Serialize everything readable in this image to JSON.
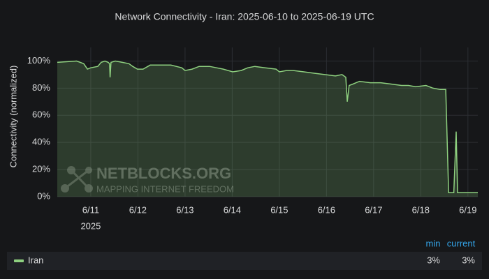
{
  "chart_data": {
    "type": "line",
    "title": "Network Connectivity - Iran: 2025-06-10 to 2025-06-19 UTC",
    "y_label": "Connectivity (normalized)",
    "x_year_label": "2025",
    "watermark": {
      "title": "NETBLOCKS.ORG",
      "subtitle": "MAPPING INTERNET FREEDOM"
    },
    "xlim": [
      10.29,
      19.21
    ],
    "xticks": [
      {
        "value": 11,
        "label": "6/11"
      },
      {
        "value": 12,
        "label": "6/12"
      },
      {
        "value": 13,
        "label": "6/13"
      },
      {
        "value": 14,
        "label": "6/14"
      },
      {
        "value": 15,
        "label": "6/15"
      },
      {
        "value": 16,
        "label": "6/16"
      },
      {
        "value": 17,
        "label": "6/17"
      },
      {
        "value": 18,
        "label": "6/18"
      },
      {
        "value": 19,
        "label": "6/19"
      }
    ],
    "ylim": [
      0,
      110
    ],
    "yticks": [
      {
        "value": 0,
        "label": "0%"
      },
      {
        "value": 20,
        "label": "20%"
      },
      {
        "value": 40,
        "label": "40%"
      },
      {
        "value": 60,
        "label": "60%"
      },
      {
        "value": 80,
        "label": "80%"
      },
      {
        "value": 100,
        "label": "100%"
      }
    ],
    "grid": true,
    "fill_area": true,
    "x": [
      10.29,
      10.7,
      10.85,
      10.93,
      11.0,
      11.15,
      11.22,
      11.3,
      11.37,
      11.4,
      11.41,
      11.43,
      11.52,
      11.67,
      11.81,
      11.89,
      11.99,
      12.11,
      12.26,
      12.48,
      12.7,
      12.93,
      13.0,
      13.15,
      13.3,
      13.52,
      13.67,
      13.81,
      14.01,
      14.19,
      14.33,
      14.48,
      14.7,
      14.93,
      15.0,
      15.15,
      15.3,
      15.52,
      15.74,
      15.96,
      16.19,
      16.33,
      16.41,
      16.44,
      16.48,
      16.56,
      16.7,
      16.93,
      17.15,
      17.37,
      17.59,
      17.74,
      17.89,
      18.11,
      18.26,
      18.41,
      18.53,
      18.59,
      18.7,
      18.75,
      18.78,
      18.93,
      19.21
    ],
    "legend_columns": [
      "min",
      "current"
    ],
    "series": [
      {
        "name": "Iran",
        "color": "#8ed07f",
        "values": [
          99,
          100,
          98,
          94,
          95,
          96,
          99,
          100,
          99,
          98,
          88,
          99,
          100,
          99,
          98,
          96,
          94,
          94,
          97,
          97,
          97,
          95,
          93,
          94,
          96,
          96,
          95,
          94,
          92,
          93,
          95,
          96,
          95,
          94,
          92,
          93,
          93,
          92,
          91,
          90,
          89,
          90,
          88,
          70,
          82,
          83,
          85,
          84,
          84,
          83,
          82,
          82,
          81,
          82,
          80,
          79,
          79,
          3,
          3,
          48,
          3,
          3,
          3
        ],
        "legend_values": [
          "3%",
          "3%"
        ]
      }
    ]
  }
}
